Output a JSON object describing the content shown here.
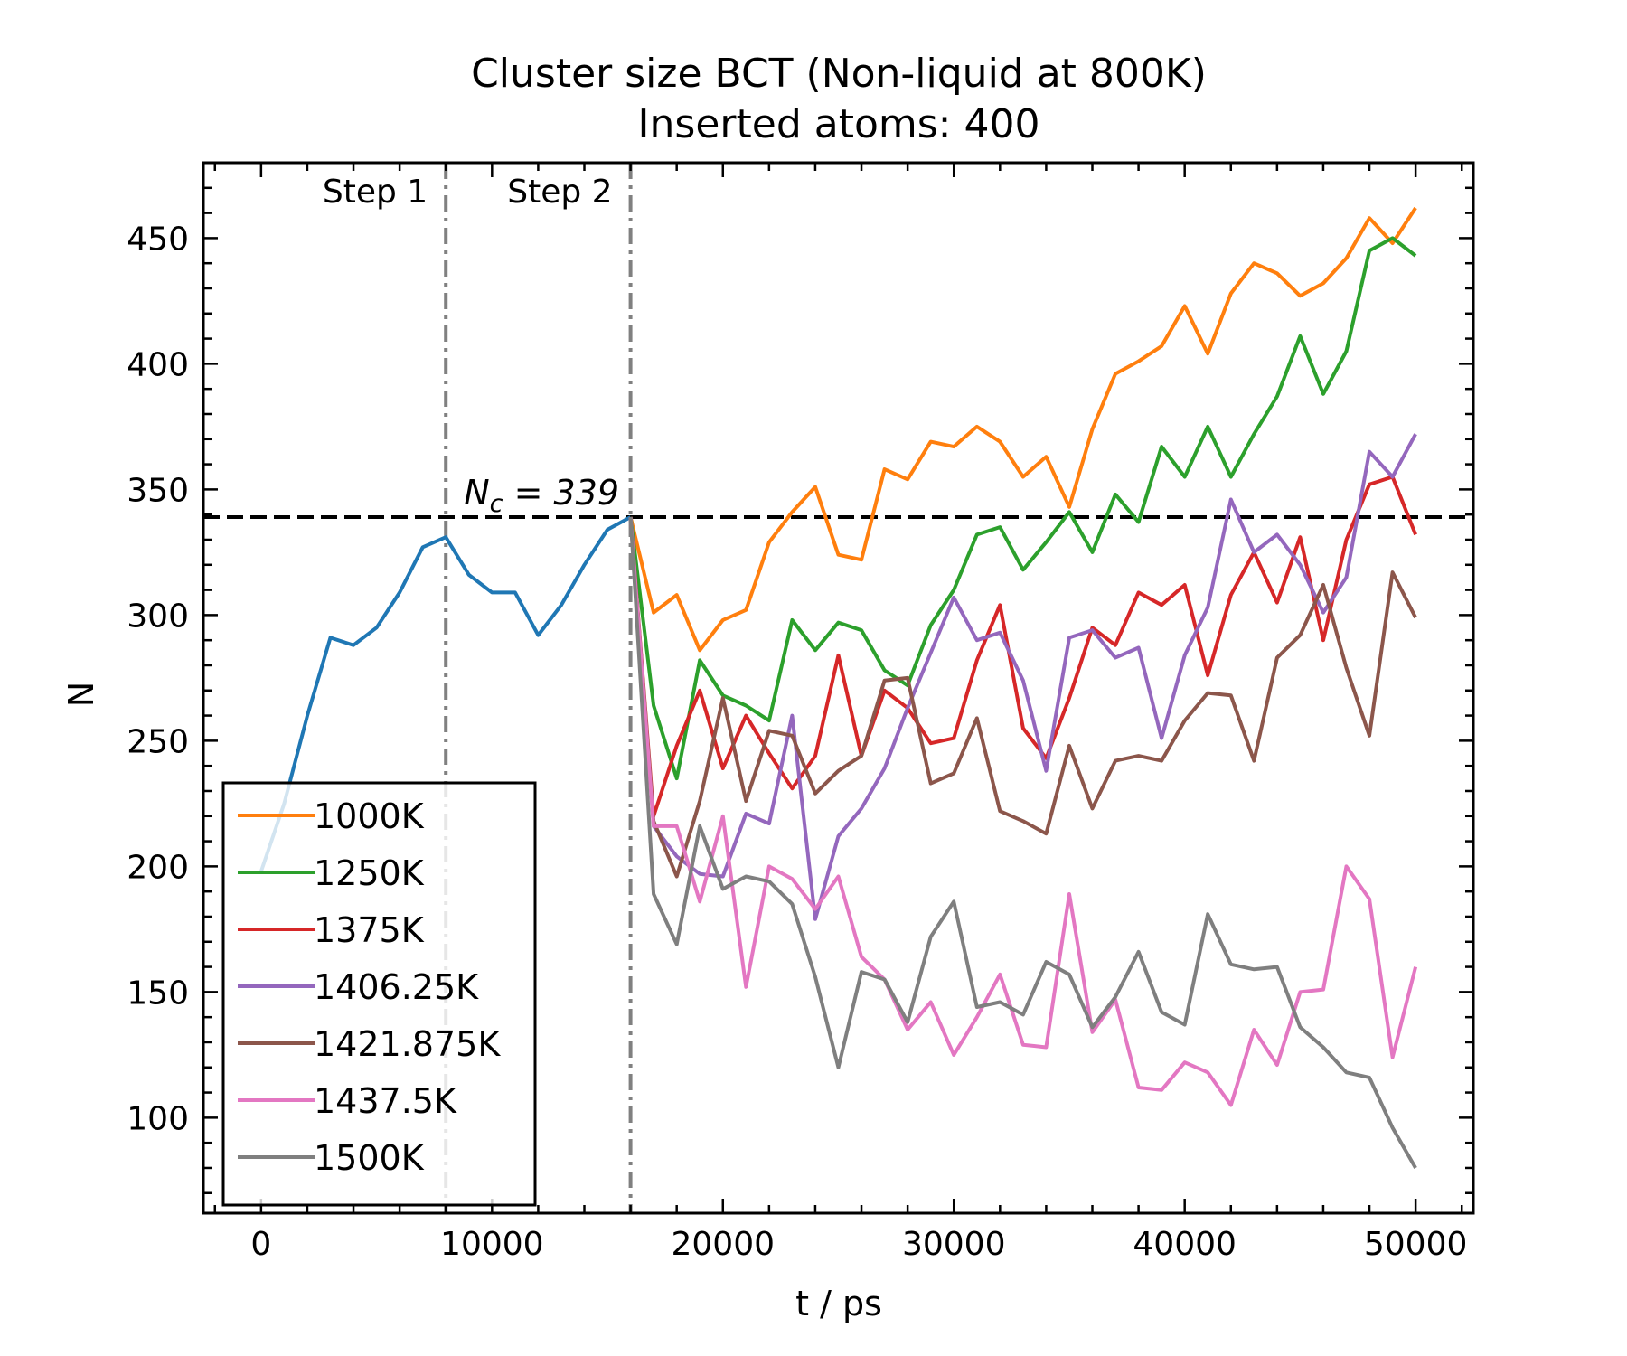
{
  "chart_data": {
    "type": "line",
    "title_line1": "Cluster size BCT (Non-liquid at 800K)",
    "title_line2": "Inserted atoms: 400",
    "xlabel": "t / ps",
    "ylabel": "N",
    "xlim": [
      -2500,
      52500
    ],
    "ylim": [
      62,
      480
    ],
    "xticks": [
      0,
      10000,
      20000,
      30000,
      40000,
      50000
    ],
    "yticks": [
      100,
      150,
      200,
      250,
      300,
      350,
      400,
      450
    ],
    "threshold": {
      "value": 339,
      "label": "N_c = 339",
      "label_main": "N",
      "label_sub": "c",
      "label_rest": " = 339"
    },
    "phase_lines": [
      {
        "x": 8000,
        "label": "Step 1"
      },
      {
        "x": 16000,
        "label": "Step 2"
      }
    ],
    "legend_position": "lower-left",
    "colors": {
      "initial": "#1f77b4",
      "dashed": "#000000",
      "phase": "#808080"
    },
    "initial_series": {
      "x": [
        0,
        1000,
        2000,
        3000,
        4000,
        5000,
        6000,
        7000,
        8000,
        9000,
        10000,
        11000,
        12000,
        13000,
        14000,
        15000,
        16000
      ],
      "values": [
        198,
        225,
        260,
        291,
        288,
        295,
        309,
        327,
        331,
        316,
        309,
        309,
        292,
        304,
        320,
        334,
        339
      ]
    },
    "series_x": [
      16000,
      17000,
      18000,
      19000,
      20000,
      21000,
      22000,
      23000,
      24000,
      25000,
      26000,
      27000,
      28000,
      29000,
      30000,
      31000,
      32000,
      33000,
      34000,
      35000,
      36000,
      37000,
      38000,
      39000,
      40000,
      41000,
      42000,
      43000,
      44000,
      45000,
      46000,
      47000,
      48000,
      49000,
      50000
    ],
    "series": [
      {
        "name": "1000K",
        "color": "#ff7f0e",
        "values": [
          339,
          301,
          308,
          286,
          298,
          302,
          329,
          341,
          351,
          324,
          322,
          358,
          354,
          369,
          367,
          375,
          369,
          355,
          363,
          343,
          374,
          396,
          401,
          407,
          423,
          404,
          428,
          440,
          436,
          427,
          432,
          442,
          458,
          448,
          462
        ]
      },
      {
        "name": "1250K",
        "color": "#2ca02c",
        "values": [
          339,
          264,
          235,
          282,
          268,
          264,
          258,
          298,
          286,
          297,
          294,
          278,
          272,
          296,
          310,
          332,
          335,
          318,
          329,
          341,
          325,
          348,
          337,
          367,
          355,
          375,
          355,
          372,
          387,
          411,
          388,
          405,
          445,
          450,
          443
        ]
      },
      {
        "name": "1375K",
        "color": "#d62728",
        "values": [
          339,
          220,
          248,
          270,
          239,
          260,
          245,
          231,
          244,
          284,
          244,
          270,
          263,
          249,
          251,
          282,
          304,
          255,
          243,
          267,
          295,
          288,
          309,
          304,
          312,
          276,
          308,
          325,
          305,
          331,
          290,
          330,
          352,
          355,
          332
        ]
      },
      {
        "name": "1406.25K",
        "color": "#9467bd",
        "values": [
          339,
          216,
          204,
          197,
          196,
          221,
          217,
          260,
          179,
          212,
          223,
          239,
          263,
          285,
          307,
          290,
          293,
          274,
          238,
          291,
          294,
          283,
          287,
          251,
          284,
          303,
          346,
          325,
          332,
          320,
          301,
          315,
          365,
          355,
          372
        ]
      },
      {
        "name": "1421.875K",
        "color": "#8c564b",
        "values": [
          339,
          218,
          196,
          226,
          267,
          226,
          254,
          252,
          229,
          238,
          244,
          274,
          275,
          233,
          237,
          259,
          222,
          218,
          213,
          248,
          223,
          242,
          244,
          242,
          258,
          269,
          268,
          242,
          283,
          292,
          312,
          279,
          252,
          317,
          299
        ]
      },
      {
        "name": "1437.5K",
        "color": "#e377c2",
        "values": [
          339,
          216,
          216,
          186,
          220,
          152,
          200,
          195,
          183,
          196,
          164,
          155,
          135,
          146,
          125,
          140,
          157,
          129,
          128,
          189,
          134,
          147,
          112,
          111,
          122,
          118,
          105,
          135,
          121,
          150,
          151,
          200,
          187,
          124,
          160
        ]
      },
      {
        "name": "1500K",
        "color": "#7f7f7f",
        "values": [
          339,
          189,
          169,
          216,
          191,
          196,
          194,
          185,
          156,
          120,
          158,
          155,
          138,
          172,
          186,
          144,
          146,
          141,
          162,
          157,
          136,
          148,
          166,
          142,
          137,
          181,
          161,
          159,
          160,
          136,
          128,
          118,
          116,
          96,
          80
        ]
      }
    ]
  }
}
